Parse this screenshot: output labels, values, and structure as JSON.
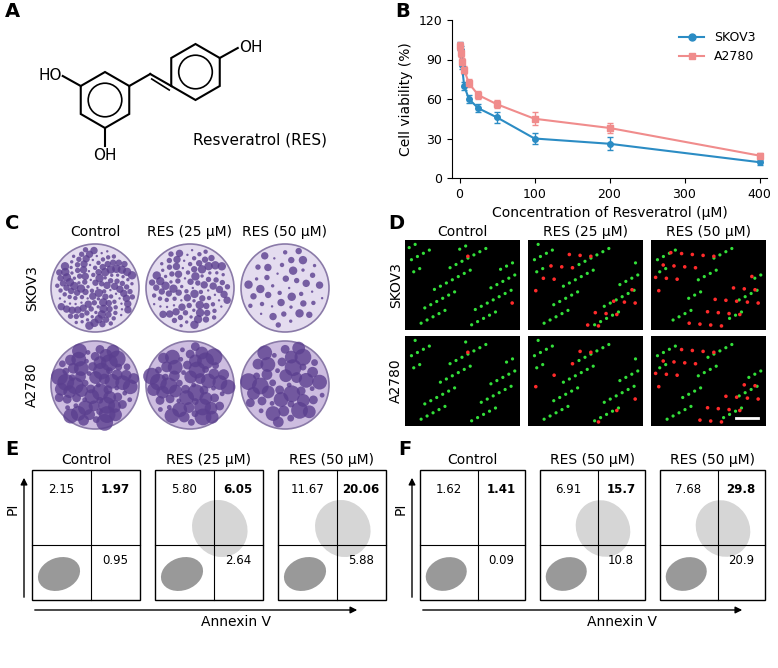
{
  "panel_labels": [
    "A",
    "B",
    "C",
    "D",
    "E",
    "F"
  ],
  "structure": {
    "name": "Resveratrol (RES)",
    "substituents": [
      "HO",
      "OH",
      "OH"
    ]
  },
  "chart_data": {
    "type": "line",
    "x_label": "Concentration of Resveratrol (μM)",
    "y_label": "Cell viability (%)",
    "x": [
      0,
      1.5625,
      3.125,
      6.25,
      12.5,
      25,
      50,
      100,
      200,
      400
    ],
    "series": [
      {
        "name": "SKOV3",
        "color": "#2b8cc4",
        "marker": "circle",
        "values": [
          100,
          97,
          86,
          70,
          60,
          53,
          46,
          30,
          26,
          12
        ],
        "errors": [
          3,
          3,
          3,
          3,
          3,
          3,
          4,
          4,
          5,
          2
        ]
      },
      {
        "name": "A2780",
        "color": "#f08c8c",
        "marker": "square",
        "values": [
          100,
          95,
          88,
          82,
          72,
          63,
          56,
          45,
          38,
          17
        ],
        "errors": [
          3,
          3,
          3,
          3,
          3,
          3,
          3,
          5,
          4,
          2
        ]
      }
    ],
    "xlim": [
      -10,
      410
    ],
    "xticks": [
      0,
      100,
      200,
      300,
      400
    ],
    "ylim": [
      0,
      120
    ],
    "yticks": [
      0,
      30,
      60,
      90,
      120
    ],
    "legend": "upper right",
    "grid": false
  },
  "colony_assay": {
    "columns": [
      "Control",
      "RES (25 μM)",
      "RES (50 μM)"
    ],
    "rows": [
      "SKOV3",
      "A2780"
    ]
  },
  "live_dead_staining": {
    "columns": [
      "Control",
      "RES (25 μM)",
      "RES (50 μM)"
    ],
    "rows": [
      "SKOV3",
      "A2780"
    ]
  },
  "flow_E": {
    "x_label": "Annexin V",
    "y_label": "PI",
    "plots": [
      {
        "title": "Control",
        "upper_left": "2.15",
        "upper_right": "1.97",
        "lower_right": "0.95"
      },
      {
        "title": "RES (25 μM)",
        "upper_left": "5.80",
        "upper_right": "6.05",
        "lower_right": "2.64"
      },
      {
        "title": "RES (50 μM)",
        "upper_left": "11.67",
        "upper_right": "20.06",
        "lower_right": "5.88"
      }
    ]
  },
  "flow_F": {
    "x_label": "Annexin V",
    "y_label": "PI",
    "plots": [
      {
        "title": "Control",
        "upper_left": "1.62",
        "upper_right": "1.41",
        "lower_right": "0.09"
      },
      {
        "title": "RES (50 μM)",
        "upper_left": "6.91",
        "upper_right": "15.7",
        "lower_right": "10.8"
      },
      {
        "title": "RES (50 μM)",
        "upper_left": "7.68",
        "upper_right": "29.8",
        "lower_right": "20.9"
      }
    ]
  }
}
